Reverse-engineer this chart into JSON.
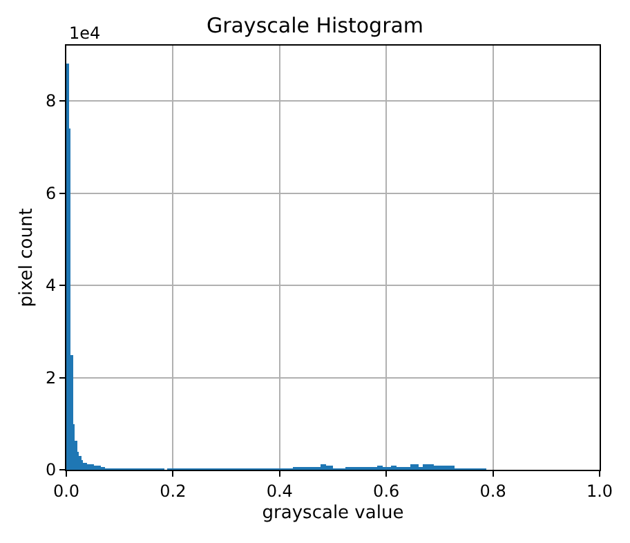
{
  "chart_data": {
    "type": "histogram",
    "title": "Grayscale Histogram",
    "xlabel": "grayscale value",
    "ylabel": "pixel count",
    "color": "#1f77b4",
    "bins": [
      0,
      0.004,
      0.008,
      0.012,
      0.016,
      0.02,
      0.024,
      0.028,
      0.032,
      0.04,
      0.052,
      0.064,
      0.072,
      0.184,
      0.188,
      0.424,
      0.476,
      0.488,
      0.5,
      0.524,
      0.584,
      0.592,
      0.608,
      0.62,
      0.644,
      0.66,
      0.668,
      0.688,
      0.728,
      0.788
    ],
    "values": [
      8.8,
      7.4,
      2.5,
      0.99,
      0.63,
      0.4,
      0.3,
      0.21,
      0.15,
      0.11,
      0.08,
      0.06,
      0.03,
      0,
      0.03,
      0.07,
      0.13,
      0.08,
      0.03,
      0.07,
      0.1,
      0.07,
      0.1,
      0.07,
      0.11,
      0.07,
      0.11,
      0.08,
      0.03
    ],
    "xlim": [
      0,
      1
    ],
    "xticks": [
      {
        "value": 0,
        "label": "0.0"
      },
      0.2,
      0.4,
      0.6,
      0.8,
      {
        "value": 1,
        "label": "1.0"
      }
    ],
    "ylim": [
      0,
      9.2
    ],
    "yticks": [
      0,
      2,
      4,
      6,
      8
    ],
    "annotations": [
      "1e4"
    ],
    "grid": true
  }
}
